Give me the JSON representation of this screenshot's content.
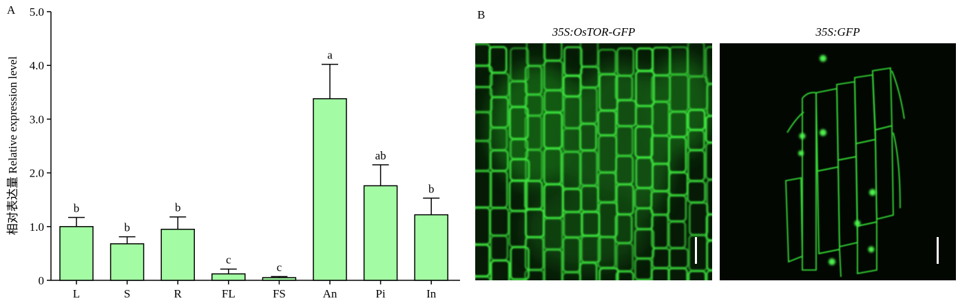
{
  "panel_a": {
    "letter": "A"
  },
  "panel_b": {
    "letter": "B",
    "images": [
      {
        "title": "35S:OsTOR-GFP"
      },
      {
        "title": "35S:GFP"
      }
    ]
  },
  "chart_data": {
    "type": "bar",
    "ylabel": "相对表达量 Relative expression level",
    "ylim": [
      0,
      5
    ],
    "yticks": [
      0,
      1,
      2,
      3,
      4,
      5
    ],
    "ytick_labels": [
      "0",
      "1.0",
      "2.0",
      "3.0",
      "4.0",
      "5.0"
    ],
    "categories": [
      "L",
      "S",
      "R",
      "FL",
      "FS",
      "An",
      "Pi",
      "In"
    ],
    "values": [
      1.0,
      0.68,
      0.95,
      0.12,
      0.05,
      3.38,
      1.76,
      1.22
    ],
    "errors": [
      0.17,
      0.13,
      0.23,
      0.09,
      0.02,
      0.64,
      0.39,
      0.31
    ],
    "significance": [
      "b",
      "b",
      "b",
      "c",
      "c",
      "a",
      "ab",
      "b"
    ],
    "bar_color": "#a3fca3",
    "grid": false
  },
  "colors": {
    "fluorescence": "#35e035",
    "scale_bar": "#ffffff"
  }
}
